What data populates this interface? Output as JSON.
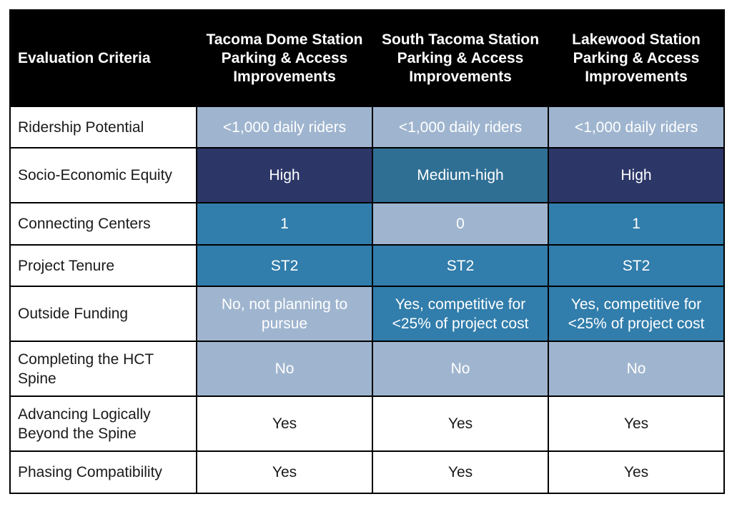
{
  "chart_data": {
    "type": "table",
    "columns": [
      "Evaluation Criteria",
      "Tacoma Dome Station Parking & Access Improvements",
      "South Tacoma Station Parking & Access Improvements",
      "Lakewood Station Parking & Access Improvements"
    ],
    "rows": [
      {
        "criterion": "Ridership Potential",
        "cells": [
          {
            "text": "<1,000 daily riders",
            "bg": "#9fb5cf",
            "fg": "#ffffff"
          },
          {
            "text": "<1,000 daily riders",
            "bg": "#9fb5cf",
            "fg": "#ffffff"
          },
          {
            "text": "<1,000 daily riders",
            "bg": "#9fb5cf",
            "fg": "#ffffff"
          }
        ]
      },
      {
        "criterion": "Socio-Economic Equity",
        "cells": [
          {
            "text": "High",
            "bg": "#2c3768",
            "fg": "#ffffff"
          },
          {
            "text": "Medium-high",
            "bg": "#2f6f94",
            "fg": "#ffffff"
          },
          {
            "text": "High",
            "bg": "#2c3768",
            "fg": "#ffffff"
          }
        ]
      },
      {
        "criterion": "Connecting Centers",
        "cells": [
          {
            "text": "1",
            "bg": "#317dab",
            "fg": "#ffffff"
          },
          {
            "text": "0",
            "bg": "#9fb5cf",
            "fg": "#ffffff"
          },
          {
            "text": "1",
            "bg": "#317dab",
            "fg": "#ffffff"
          }
        ]
      },
      {
        "criterion": "Project Tenure",
        "cells": [
          {
            "text": "ST2",
            "bg": "#317dab",
            "fg": "#ffffff"
          },
          {
            "text": "ST2",
            "bg": "#317dab",
            "fg": "#ffffff"
          },
          {
            "text": "ST2",
            "bg": "#317dab",
            "fg": "#ffffff"
          }
        ]
      },
      {
        "criterion": "Outside Funding",
        "cells": [
          {
            "text": "No, not planning to pursue",
            "bg": "#9fb5cf",
            "fg": "#ffffff"
          },
          {
            "text": "Yes, competitive for <25% of project cost",
            "bg": "#317dab",
            "fg": "#ffffff"
          },
          {
            "text": "Yes, competitive for <25% of project cost",
            "bg": "#317dab",
            "fg": "#ffffff"
          }
        ]
      },
      {
        "criterion": "Completing the HCT Spine",
        "cells": [
          {
            "text": "No",
            "bg": "#9fb5cf",
            "fg": "#ffffff"
          },
          {
            "text": "No",
            "bg": "#9fb5cf",
            "fg": "#ffffff"
          },
          {
            "text": "No",
            "bg": "#9fb5cf",
            "fg": "#ffffff"
          }
        ]
      },
      {
        "criterion": "Advancing Logically Beyond the Spine",
        "cells": [
          {
            "text": "Yes",
            "bg": "#ffffff",
            "fg": "#1a1a1a"
          },
          {
            "text": "Yes",
            "bg": "#ffffff",
            "fg": "#1a1a1a"
          },
          {
            "text": "Yes",
            "bg": "#ffffff",
            "fg": "#1a1a1a"
          }
        ]
      },
      {
        "criterion": "Phasing Compatibility",
        "cells": [
          {
            "text": "Yes",
            "bg": "#ffffff",
            "fg": "#1a1a1a"
          },
          {
            "text": "Yes",
            "bg": "#ffffff",
            "fg": "#1a1a1a"
          },
          {
            "text": "Yes",
            "bg": "#ffffff",
            "fg": "#1a1a1a"
          }
        ]
      }
    ]
  }
}
